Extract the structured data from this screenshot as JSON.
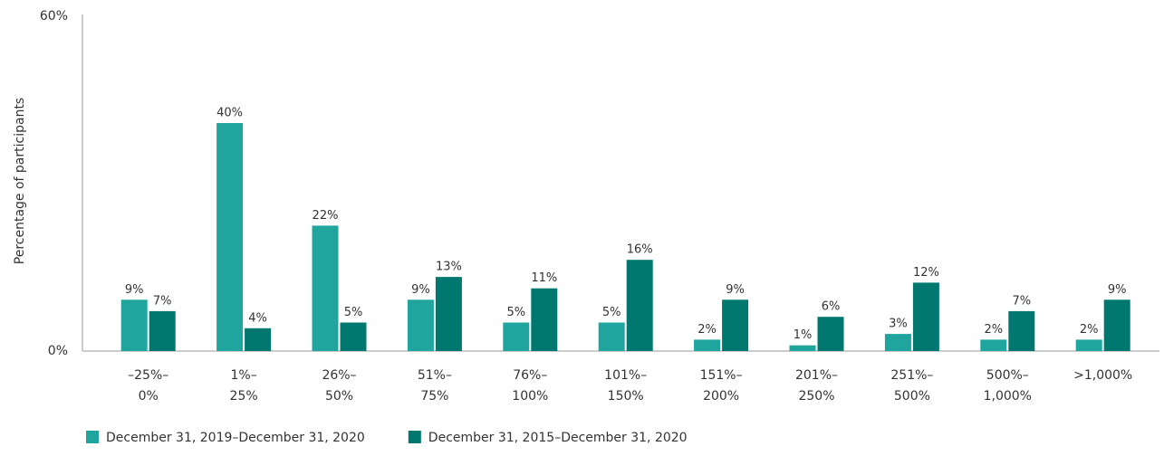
{
  "chart_data": {
    "type": "bar",
    "y_label": "Percentage of participants",
    "categories": [
      [
        "–25%–",
        "0%"
      ],
      [
        "1%–",
        "25%"
      ],
      [
        "26%–",
        "50%"
      ],
      [
        "51%–",
        "75%"
      ],
      [
        "76%–",
        "100%"
      ],
      [
        "101%–",
        "150%"
      ],
      [
        "151%–",
        "200%"
      ],
      [
        "201%–",
        "250%"
      ],
      [
        "251%–",
        "500%"
      ],
      [
        "500%–",
        "1,000%"
      ],
      [
        ">1,000%"
      ]
    ],
    "series": [
      {
        "name": "December 31, 2019–December 31, 2020",
        "color": "#1fa59e",
        "values": [
          9,
          40,
          22,
          9,
          5,
          5,
          2,
          1,
          3,
          2,
          2
        ],
        "value_labels": [
          "9%",
          "40%",
          "22%",
          "9%",
          "5%",
          "5%",
          "2%",
          "1%",
          "3%",
          "2%",
          "2%"
        ]
      },
      {
        "name": "December 31, 2015–December 31, 2020",
        "color": "#00776f",
        "values": [
          7,
          4,
          5,
          13,
          11,
          16,
          9,
          6,
          12,
          7,
          9
        ],
        "value_labels": [
          "7%",
          "4%",
          "5%",
          "13%",
          "11%",
          "16%",
          "9%",
          "6%",
          "12%",
          "7%",
          "9%"
        ]
      }
    ],
    "ylim": [
      0,
      60
    ],
    "yticks": [
      {
        "value": 0,
        "label": "0%"
      },
      {
        "value": 60,
        "label": "60%"
      }
    ],
    "grid": false,
    "legend": "bottom-left"
  }
}
